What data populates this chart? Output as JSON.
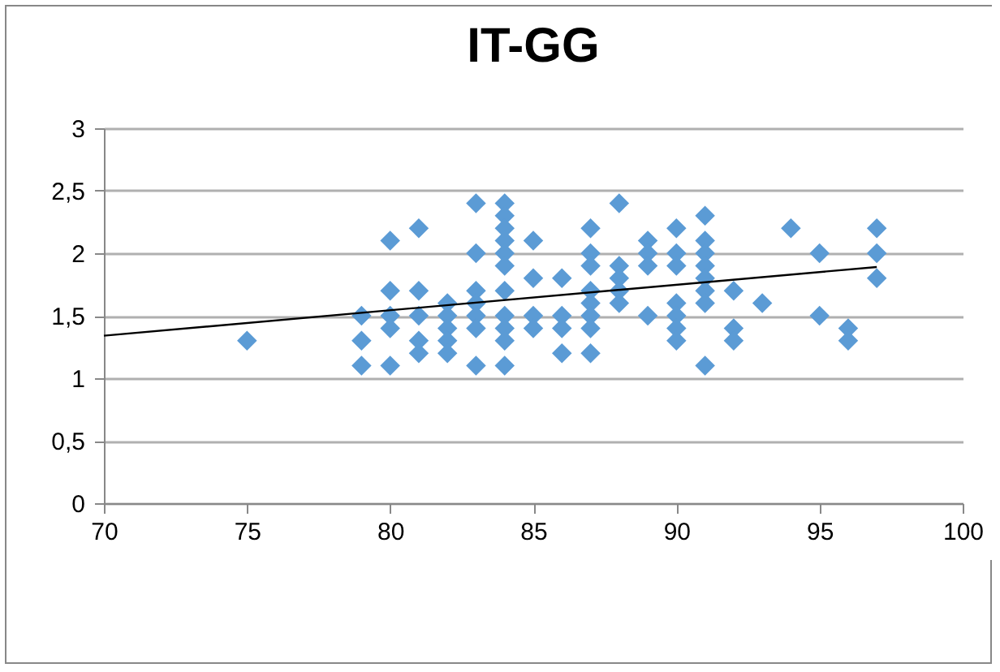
{
  "chart_data": {
    "type": "scatter",
    "title": "IT-GG",
    "marker": "diamond",
    "grid": "y",
    "xlim": [
      70,
      100
    ],
    "xticks": [
      70,
      75,
      80,
      85,
      90,
      95,
      100
    ],
    "ylim": [
      0,
      3
    ],
    "yticks": [
      0,
      {
        "value": 0.5,
        "label": "0,5"
      },
      1,
      {
        "value": 1.5,
        "label": "1,5"
      },
      2,
      {
        "value": 2.5,
        "label": "2,5"
      },
      3
    ],
    "series": [
      {
        "color": "#5b9bd5",
        "x": [
          75,
          79,
          79,
          79,
          80,
          80,
          80,
          80,
          80,
          81,
          81,
          81,
          81,
          81,
          82,
          82,
          82,
          82,
          82,
          83,
          83,
          83,
          83,
          83,
          83,
          83,
          84,
          84,
          84,
          84,
          84,
          84,
          84,
          84,
          84,
          84,
          84,
          85,
          85,
          85,
          85,
          86,
          86,
          86,
          86,
          87,
          87,
          87,
          87,
          87,
          87,
          87,
          87,
          88,
          88,
          88,
          88,
          88,
          89,
          89,
          89,
          89,
          90,
          90,
          90,
          90,
          90,
          90,
          90,
          91,
          91,
          91,
          91,
          91,
          91,
          91,
          91,
          92,
          92,
          92,
          93,
          94,
          95,
          95,
          96,
          96,
          97,
          97,
          97
        ],
        "values": [
          1.3,
          1.5,
          1.3,
          1.1,
          2.1,
          1.7,
          1.5,
          1.4,
          1.1,
          2.2,
          1.7,
          1.5,
          1.3,
          1.2,
          1.6,
          1.5,
          1.4,
          1.3,
          1.2,
          2.4,
          2.0,
          1.7,
          1.6,
          1.5,
          1.4,
          1.1,
          2.4,
          2.3,
          2.2,
          2.1,
          2.0,
          1.9,
          1.7,
          1.5,
          1.4,
          1.3,
          1.1,
          2.1,
          1.8,
          1.5,
          1.4,
          1.8,
          1.5,
          1.4,
          1.2,
          2.2,
          2.0,
          1.9,
          1.7,
          1.6,
          1.5,
          1.4,
          1.2,
          2.4,
          1.9,
          1.8,
          1.7,
          1.6,
          2.1,
          2.0,
          1.9,
          1.5,
          2.2,
          2.0,
          1.9,
          1.6,
          1.5,
          1.4,
          1.3,
          2.3,
          2.1,
          2.0,
          1.9,
          1.8,
          1.7,
          1.6,
          1.1,
          1.7,
          1.4,
          1.3,
          1.6,
          2.2,
          2.0,
          1.5,
          1.4,
          1.3,
          2.2,
          2.0,
          1.8
        ]
      },
      {
        "type": "line",
        "color": "#000000",
        "marker": "none",
        "x": [
          70,
          97
        ],
        "values": [
          1.34,
          1.89
        ]
      }
    ]
  }
}
